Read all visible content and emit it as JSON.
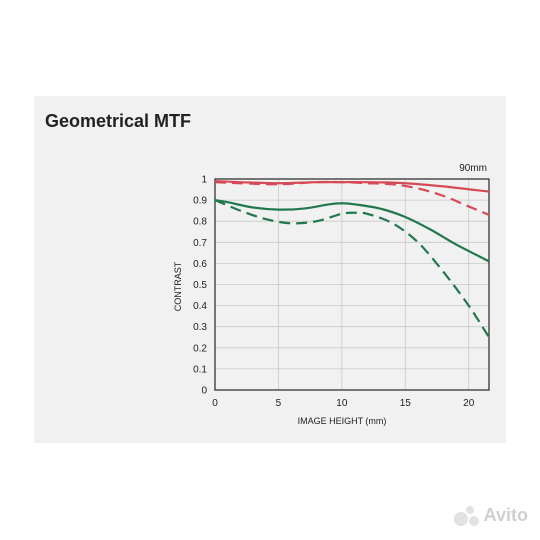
{
  "title": "Geometrical MTF",
  "watermark": "Avito",
  "chart_data": {
    "type": "line",
    "annotation": "90mm",
    "xlabel": "IMAGE HEIGHT (mm)",
    "ylabel": "CONTRAST",
    "xlim": [
      0,
      21.6
    ],
    "ylim": [
      0,
      1
    ],
    "xticks": [
      0,
      5,
      10,
      15,
      20
    ],
    "yticks": [
      0,
      0.1,
      0.2,
      0.3,
      0.4,
      0.5,
      0.6,
      0.7,
      0.8,
      0.9,
      1
    ],
    "ytick_labels": [
      "0",
      "0.1",
      "0.2",
      "0.3",
      "0.4",
      "0.5",
      "0.6",
      "0.7",
      "0.8",
      "0.9",
      "1"
    ],
    "grid": true,
    "series": [
      {
        "color": "#d64a57",
        "dash": "solid",
        "x": [
          0,
          2,
          5,
          8,
          10,
          12,
          15,
          18,
          21.6
        ],
        "y": [
          0.99,
          0.985,
          0.98,
          0.985,
          0.985,
          0.985,
          0.98,
          0.965,
          0.94
        ]
      },
      {
        "color": "#d64a57",
        "dash": "dashed",
        "x": [
          0,
          2,
          5,
          8,
          10,
          12,
          14,
          16,
          18,
          20,
          21.6
        ],
        "y": [
          0.985,
          0.98,
          0.975,
          0.985,
          0.985,
          0.98,
          0.975,
          0.955,
          0.92,
          0.87,
          0.83
        ]
      },
      {
        "color": "#22784d",
        "dash": "solid",
        "x": [
          0,
          1,
          3,
          5,
          7,
          9,
          10,
          11,
          13,
          15,
          17,
          19,
          21.6
        ],
        "y": [
          0.9,
          0.89,
          0.865,
          0.855,
          0.86,
          0.88,
          0.885,
          0.88,
          0.86,
          0.82,
          0.76,
          0.69,
          0.61
        ]
      },
      {
        "color": "#22784d",
        "dash": "dashed",
        "x": [
          0,
          2,
          4,
          6,
          8,
          10,
          11,
          12,
          14,
          16,
          18,
          20,
          21.6
        ],
        "y": [
          0.9,
          0.85,
          0.81,
          0.79,
          0.8,
          0.835,
          0.84,
          0.835,
          0.79,
          0.7,
          0.56,
          0.4,
          0.25
        ]
      }
    ]
  }
}
